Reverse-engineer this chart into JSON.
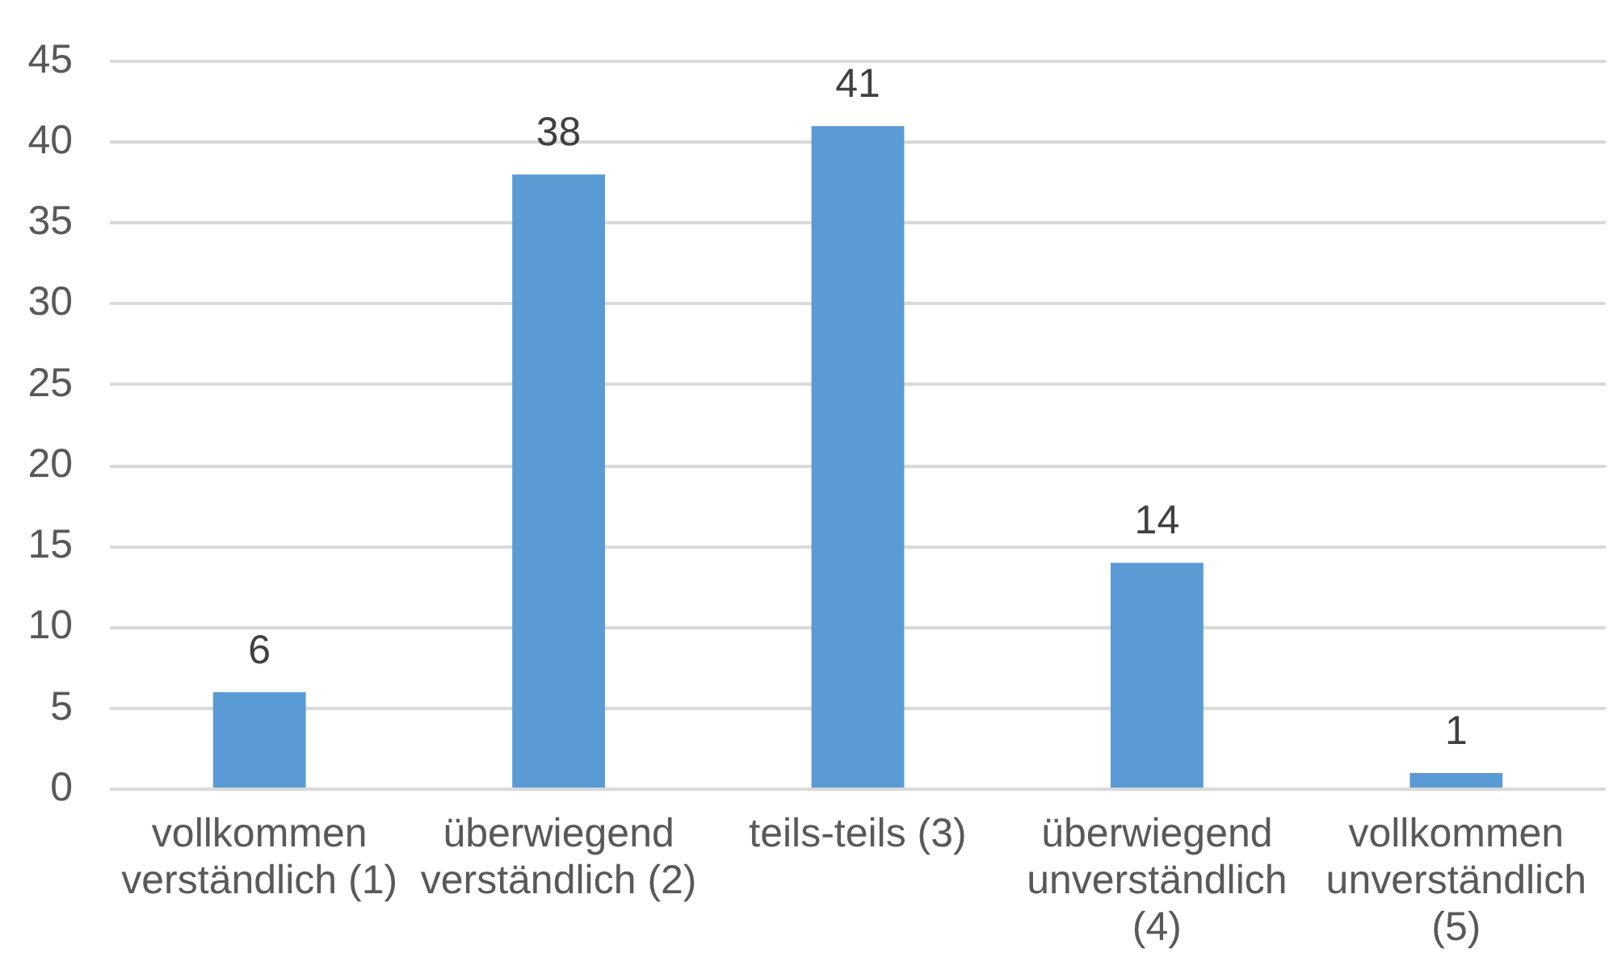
{
  "chart_data": {
    "type": "bar",
    "categories": [
      "vollkommen verständlich (1)",
      "überwiegend verständlich (2)",
      "teils-teils (3)",
      "überwiegend unverständlich (4)",
      "vollkommen unverständlich (5)"
    ],
    "values": [
      6,
      38,
      41,
      14,
      1
    ],
    "color": "#5b9bd5",
    "ylim": [
      0,
      45
    ],
    "yticks": [
      0,
      5,
      10,
      15,
      20,
      25,
      30,
      35,
      40,
      45
    ],
    "grid": "y",
    "data_labels": true
  }
}
